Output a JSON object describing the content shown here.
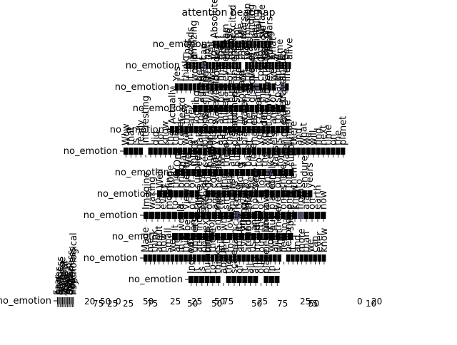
{
  "chart_data": {
    "type": "heatmap",
    "title": "attention heatmap",
    "colors": {
      "cell": "#000000",
      "highlight": "#ffffff",
      "accent": "#4b4b6e",
      "text": "#000000"
    },
    "rows": [
      {
        "label": "no_emotion",
        "words": [
          "Absolutely",
          "!",
          "I",
          "am",
          "so",
          "excited",
          "for",
          "the",
          "Mars",
          "mission",
          "landing",
          "on",
          "the",
          "surface",
          "of",
          "Mars"
        ],
        "attention": [
          0.92,
          0.95,
          0.9,
          0.93,
          0.88,
          0.9,
          0.94,
          0.91,
          0.89,
          0.92,
          0.9,
          0.93,
          0.95,
          0.91,
          0.9,
          0.94
        ]
      },
      {
        "label": "no_emotion",
        "words": [
          "That",
          "sounds",
          "amazing",
          "!",
          "I",
          "can",
          "not",
          "wait",
          "to",
          "see",
          "the",
          "first",
          "photos",
          "from",
          "there",
          "and",
          "the",
          "rovers",
          "too",
          "Mars",
          "is",
          "fascinating",
          "to",
          "explore",
          "for",
          "sure",
          "what",
          "a",
          "time",
          "to",
          "be",
          "alive"
        ],
        "attention": [
          0.9,
          0.92,
          0.88,
          0.93,
          0.91,
          0.2,
          0.94,
          0.9,
          0.89,
          0.92,
          0.91,
          0.93,
          0.9,
          0.95,
          0.89,
          0.91,
          0.9,
          0.05,
          0.92,
          0.9,
          0.93,
          0.88,
          0.91,
          0.9,
          0.94,
          0.92,
          0.9,
          0.89,
          0.93,
          0.91,
          0.9,
          0.92
        ]
      },
      {
        "label": "no_emotion",
        "words": [
          "Yes",
          "I",
          "think",
          "it",
          "would",
          "be",
          "great",
          "if",
          "we",
          "could",
          "find",
          "evidence",
          "of",
          "ancient",
          "life",
          "on",
          "the",
          "planet",
          "it",
          "could",
          "change",
          "everything",
          "we",
          "know",
          "about",
          "life"
        ],
        "attention": [
          0.9,
          0.93,
          0.91,
          0.9,
          0.92,
          0.89,
          0.94,
          0.9,
          0.91,
          0.93,
          0.9,
          0.92,
          0.91,
          0.9,
          0.89,
          0.93,
          0.91,
          0.9,
          0.35,
          0.92,
          0.9,
          0.91,
          0.93,
          0.05,
          0.5,
          0.9
        ]
      },
      {
        "label": "no_emotion",
        "words": [
          "I",
          "agree",
          "finding",
          "water",
          "would",
          "be",
          "a",
          "huge",
          "step",
          "toward",
          "that",
          "discovery",
          "and",
          "the",
          "future",
          "of",
          "space",
          "travel"
        ],
        "attention": [
          0.91,
          0.9,
          0.93,
          0.92,
          0.9,
          0.89,
          0.94,
          0.91,
          0.9,
          0.92,
          0.93,
          0.9,
          0.91,
          0.89,
          0.92,
          0.9,
          0.93,
          0.91
        ]
      },
      {
        "label": "no_emotion",
        "words": [
          "Actually",
          "I",
          "heard",
          "they",
          "are",
          "looking",
          "for",
          "signs",
          "of",
          "water",
          "and",
          "minerals",
          "that",
          "formed",
          "in",
          "water",
          "near",
          "the",
          "crater",
          "rim",
          "today",
          "and",
          "they",
          "expect",
          "more"
        ],
        "attention": [
          0.92,
          0.9,
          0.91,
          0.93,
          0.9,
          0.89,
          0.94,
          0.91,
          0.9,
          0.92,
          0.91,
          0.93,
          0.9,
          0.91,
          0.89,
          0.92,
          0.9,
          0.91,
          0.93,
          0.9,
          0.92,
          0.91,
          0.9,
          0.89,
          0.93
        ]
      },
      {
        "label": "no_emotion",
        "words": [
          "Wow",
          "that",
          "is",
          "really",
          "interesting",
          "I",
          "did",
          "not",
          "know",
          "that",
          "the",
          "crater",
          "was",
          "once",
          "a",
          "lake",
          "billions",
          "of",
          "years",
          "ago",
          "on",
          "that",
          "distant",
          "red",
          "planet",
          "it",
          "makes",
          "you",
          "wonder",
          "what",
          "else",
          "is",
          "hidden",
          "under",
          "there",
          "and",
          "what",
          "we",
          "will",
          "find",
          "next",
          "time",
          "on",
          "the",
          "planet"
        ],
        "attention": [
          0.92,
          0.9,
          0.91,
          0.93,
          0.05,
          0.9,
          0.94,
          0.91,
          0.9,
          0.92,
          0.93,
          0.9,
          0.91,
          0.89,
          0.92,
          0.9,
          0.93,
          0.91,
          0.9,
          0.92,
          0.91,
          0.9,
          0.89,
          0.93,
          0.92,
          0.9,
          0.91,
          0.93,
          0.9,
          0.92,
          0.91,
          0.9,
          0.89,
          0.93,
          0.92,
          0.9,
          0.91,
          0.93,
          0.9,
          0.92,
          0.91,
          0.9,
          0.89,
          0.93,
          0.92
        ]
      },
      {
        "label": "no_emotion",
        "words": [
          "One",
          "day",
          "we",
          "might",
          "even",
          "send",
          "humans",
          "to",
          "live",
          "there",
          "and",
          "build",
          "a",
          "base",
          "close",
          "to",
          "the",
          "ice",
          "caps",
          "for",
          "water",
          "supply"
        ],
        "attention": [
          0.91,
          0.9,
          0.93,
          0.92,
          0.9,
          0.89,
          0.94,
          0.91,
          0.9,
          0.92,
          0.93,
          0.9,
          0.91,
          0.89,
          0.92,
          0.9,
          0.93,
          0.35,
          0.9,
          0.92,
          0.91,
          0.9
        ]
      },
      {
        "label": "no_emotion",
        "words": [
          "Well",
          "I",
          "hope",
          "they",
          "bring",
          "plenty",
          "of",
          "supplies",
          "and",
          "good",
          "company",
          "because",
          "the",
          "trip",
          "is",
          "going",
          "to",
          "be",
          "very",
          "long",
          "and",
          "lonely",
          "out",
          "there",
          "for",
          "them",
          "to",
          "endure",
          "years"
        ],
        "attention": [
          0.9,
          0.92,
          0.91,
          0.93,
          0.9,
          0.89,
          0.94,
          0.91,
          0.05,
          0.92,
          0.93,
          0.9,
          0.91,
          0.89,
          0.92,
          0.9,
          0.93,
          0.91,
          0.9,
          0.92,
          0.91,
          0.9,
          0.89,
          0.93,
          0.92,
          0.9,
          0.91,
          0.93,
          0.9
        ]
      },
      {
        "label": "no_emotion",
        "words": [
          "Imagine",
          "waking",
          "up",
          "every",
          "morning",
          "to",
          "a",
          "view",
          "of",
          "the",
          "red",
          "dust",
          "and",
          "two",
          "small",
          "moons",
          "rising",
          "over",
          "the",
          "horizon",
          "of",
          "a",
          "planet",
          "we",
          "once",
          "only",
          "knew",
          "from",
          "afar",
          "on",
          "earth",
          "now"
        ],
        "attention": [
          0.92,
          0.9,
          0.91,
          0.93,
          0.9,
          0.89,
          0.94,
          0.91,
          0.9,
          0.92,
          0.93,
          0.9,
          0.91,
          0.89,
          0.92,
          0.9,
          0.5,
          0.91,
          0.9,
          0.92,
          0.91,
          0.9,
          0.89,
          0.93,
          0.92,
          0.9,
          0.91,
          0.3,
          0.9,
          0.92,
          0.91,
          0.9
        ]
      },
      {
        "label": "no_emotion",
        "words": [
          "It",
          "would",
          "be",
          "an",
          "incredible",
          "experience",
          "for",
          "anyone",
          "who",
          "loves",
          "science",
          "and",
          "adventure",
          "and",
          "the",
          "unknown",
          "out",
          "there",
          "in",
          "space"
        ],
        "attention": [
          0.91,
          0.9,
          0.93,
          0.92,
          0.9,
          0.89,
          0.94,
          0.91,
          0.9,
          0.92,
          0.93,
          0.9,
          0.91,
          0.89,
          0.92,
          0.9,
          0.93,
          0.91,
          0.9,
          0.92
        ]
      },
      {
        "label": "no_emotion",
        "words": [
          "Made",
          "me",
          "think",
          "about",
          "how",
          "small",
          "we",
          "are",
          "in",
          "this",
          "vast",
          "universe",
          "and",
          "how",
          "much",
          "there",
          "is",
          "still",
          "left",
          "to",
          "learn",
          "about",
          "everything",
          "around",
          "us",
          "including",
          "our",
          "neighbor",
          "world",
          "and",
          "what",
          "lies",
          "beyond",
          "it",
          "and",
          "more",
          "than",
          "we",
          "can",
          "ever",
          "know"
        ],
        "attention": [
          0.92,
          0.9,
          0.91,
          0.93,
          0.9,
          0.89,
          0.94,
          0.91,
          0.9,
          0.92,
          0.93,
          0.9,
          0.91,
          0.89,
          0.92,
          0.9,
          0.93,
          0.91,
          0.9,
          0.92,
          0.91,
          0.9,
          0.89,
          0.93,
          0.92,
          0.9,
          0.91,
          0.93,
          0.9,
          0.92,
          0.91,
          0.05,
          0.89,
          0.93,
          0.92,
          0.9,
          0.91,
          0.93,
          0.9,
          0.92,
          0.91
        ]
      },
      {
        "label": "no_emotion",
        "words": [
          "Indeed",
          "it",
          "is",
          "humbling",
          "to",
          "think",
          "about",
          "the",
          "scale",
          "of",
          "it",
          "all",
          "and",
          "our",
          "place",
          "in",
          "it"
        ],
        "attention": [
          0.9,
          0.92,
          0.91,
          0.93,
          0.9,
          0.89,
          0.05,
          0.91,
          0.9,
          0.92,
          0.93,
          0.9,
          0.91,
          0.05,
          0.92,
          0.9,
          0.93
        ]
      },
      {
        "label": "no_emotion",
        "words": [
          "Fear",
          "Anger",
          "Sadness",
          "Joy",
          "Surprise",
          "Disgust",
          "Neutral",
          "Love",
          "Hope",
          "Awe",
          "Logical",
          "Calmness",
          "Eagerness",
          "Psychological"
        ],
        "attention": [
          0.92,
          0.9,
          0.91,
          0.93,
          0.9,
          0.89,
          0.94,
          0.91,
          0.9,
          0.92,
          0.93,
          0.9,
          0.91,
          0.89
        ]
      }
    ],
    "bottom_ticks": [
      "20",
      "75",
      "50",
      "25",
      "0",
      "25",
      "50",
      "75",
      "25",
      "50",
      "25",
      "50",
      "75",
      "50",
      "25",
      "75",
      "25",
      "50",
      "0",
      "10",
      "20",
      "75",
      "50"
    ]
  }
}
